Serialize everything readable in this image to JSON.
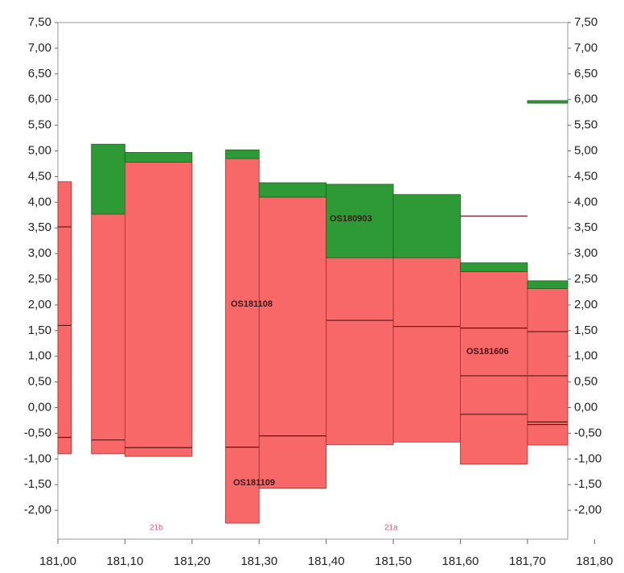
{
  "chart_data": {
    "type": "step-blocks",
    "xlim": [
      181.0,
      181.76
    ],
    "ylim": [
      -2.5,
      7.5
    ],
    "xticks": [
      {
        "value": 181.0,
        "label": "181,00"
      },
      {
        "value": 181.1,
        "label": "181,10"
      },
      {
        "value": 181.2,
        "label": "181,20"
      },
      {
        "value": 181.3,
        "label": "181,30"
      },
      {
        "value": 181.4,
        "label": "181,40"
      },
      {
        "value": 181.5,
        "label": "181,50"
      },
      {
        "value": 181.6,
        "label": "181,60"
      },
      {
        "value": 181.7,
        "label": "181,70"
      },
      {
        "value": 181.8,
        "label": "181,80"
      }
    ],
    "yticks": [
      {
        "value": -2,
        "label": "-2,00"
      },
      {
        "value": -1.5,
        "label": "-1,50"
      },
      {
        "value": -1,
        "label": "-1,00"
      },
      {
        "value": -0.5,
        "label": "-0,50"
      },
      {
        "value": 0,
        "label": "0,00"
      },
      {
        "value": 0.5,
        "label": "0,50"
      },
      {
        "value": 1,
        "label": "1,00"
      },
      {
        "value": 1.5,
        "label": "1,50"
      },
      {
        "value": 2,
        "label": "2,00"
      },
      {
        "value": 2.5,
        "label": "2,50"
      },
      {
        "value": 3,
        "label": "3,00"
      },
      {
        "value": 3.5,
        "label": "3,50"
      },
      {
        "value": 4,
        "label": "4,00"
      },
      {
        "value": 4.5,
        "label": "4,50"
      },
      {
        "value": 5,
        "label": "5,00"
      },
      {
        "value": 5.5,
        "label": "5,50"
      },
      {
        "value": 6,
        "label": "6,00"
      },
      {
        "value": 6.5,
        "label": "6,50"
      },
      {
        "value": 7,
        "label": "7,00"
      },
      {
        "value": 7.5,
        "label": "7,50"
      }
    ],
    "red_color": "#f86868",
    "green_color": "#2e9a36",
    "blocks": [
      {
        "x": [
          181.0,
          181.02
        ],
        "red": [
          -0.9,
          4.4
        ],
        "lines": [
          3.52,
          1.6,
          -0.58
        ]
      },
      {
        "x": [
          181.05,
          181.1
        ],
        "red": [
          -0.9,
          3.77
        ],
        "green": [
          3.77,
          5.13
        ],
        "lines": [
          -0.63
        ]
      },
      {
        "x": [
          181.1,
          181.2
        ],
        "red": [
          -0.95,
          4.78
        ],
        "green": [
          4.78,
          4.97
        ],
        "lines": [
          -0.78
        ]
      },
      {
        "x": [
          181.25,
          181.3
        ],
        "red": [
          -2.25,
          4.85
        ],
        "green": [
          4.85,
          5.02
        ],
        "lines": [
          -0.77
        ]
      },
      {
        "x": [
          181.3,
          181.4
        ],
        "red": [
          -1.57,
          4.1
        ],
        "green": [
          4.1,
          4.38
        ],
        "lines": [
          -0.55
        ]
      },
      {
        "x": [
          181.4,
          181.5
        ],
        "red": [
          -0.72,
          2.92
        ],
        "green": [
          2.92,
          4.35
        ],
        "lines": [
          1.7
        ]
      },
      {
        "x": [
          181.5,
          181.6
        ],
        "red": [
          -0.67,
          2.92
        ],
        "green": [
          2.92,
          4.15
        ],
        "lines": [
          1.58
        ]
      },
      {
        "x": [
          181.6,
          181.7
        ],
        "red": [
          -1.1,
          2.65
        ],
        "green": [
          2.65,
          2.82
        ],
        "lines": [
          1.55,
          0.62,
          -0.13,
          3.73
        ]
      },
      {
        "x": [
          181.7,
          181.76
        ],
        "red": [
          -0.73,
          2.32
        ],
        "green": [
          2.32,
          2.47
        ],
        "lines": [
          1.48,
          0.62,
          -0.28,
          -0.33
        ]
      },
      {
        "x": [
          181.7,
          181.76
        ],
        "green": [
          5.93,
          5.98
        ]
      }
    ],
    "annotations": [
      "OS180903",
      "OS181108",
      "OS181109",
      "OS181606",
      "21b",
      "21a"
    ]
  }
}
